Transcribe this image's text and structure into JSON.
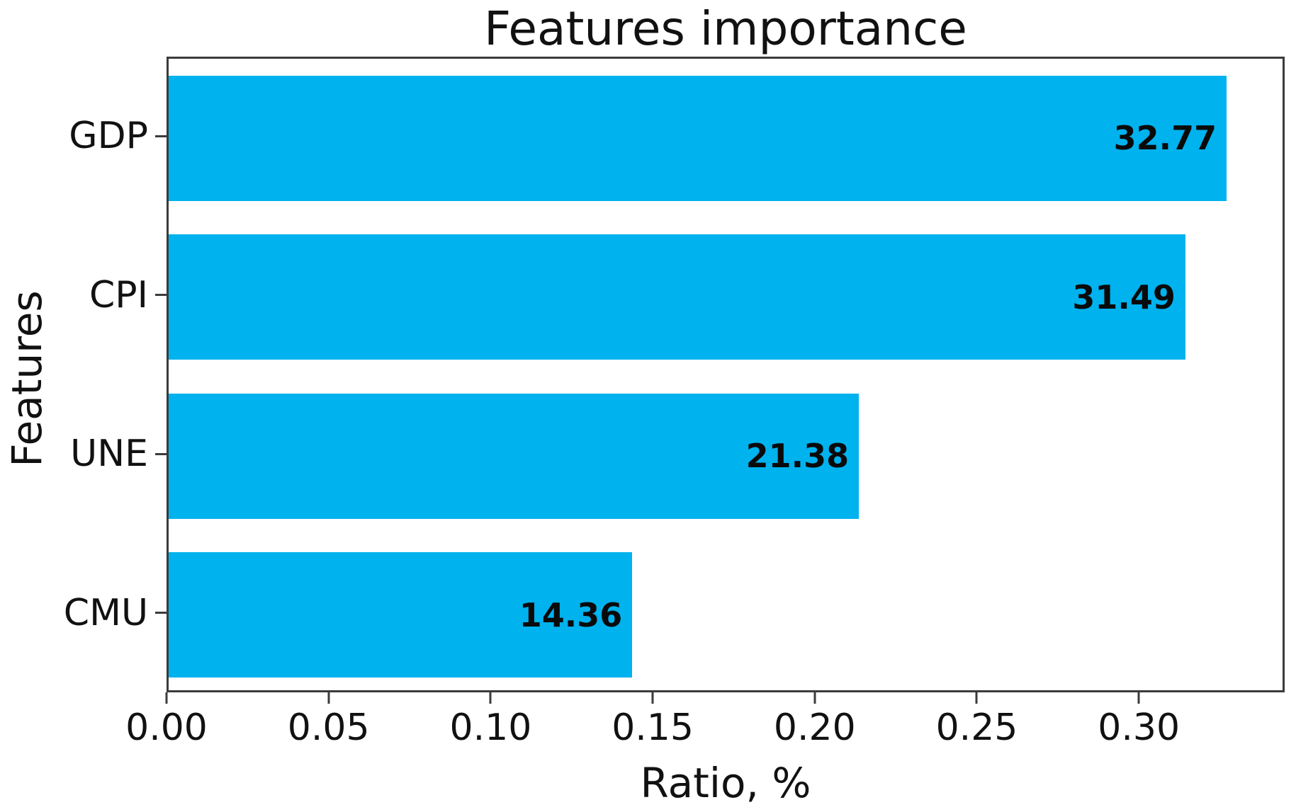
{
  "chart_data": {
    "type": "bar",
    "orientation": "horizontal",
    "title": "Features importance",
    "xlabel": "Ratio, %",
    "ylabel": "Features",
    "categories": [
      "GDP",
      "CPI",
      "UNE",
      "CMU"
    ],
    "values": [
      0.3277,
      0.3149,
      0.2138,
      0.1436
    ],
    "bar_labels": [
      "32.77",
      "31.49",
      "21.38",
      "14.36"
    ],
    "xlim": [
      0.0,
      0.345
    ],
    "xtick_values": [
      0.0,
      0.05,
      0.1,
      0.15,
      0.2,
      0.25,
      0.3
    ],
    "xtick_labels": [
      "0.00",
      "0.05",
      "0.10",
      "0.15",
      "0.20",
      "0.25",
      "0.30"
    ],
    "grid": false,
    "legend": "none",
    "bar_color": "#00b2ee",
    "spine_color": "#3b3b3b",
    "text_color": "#111111"
  }
}
